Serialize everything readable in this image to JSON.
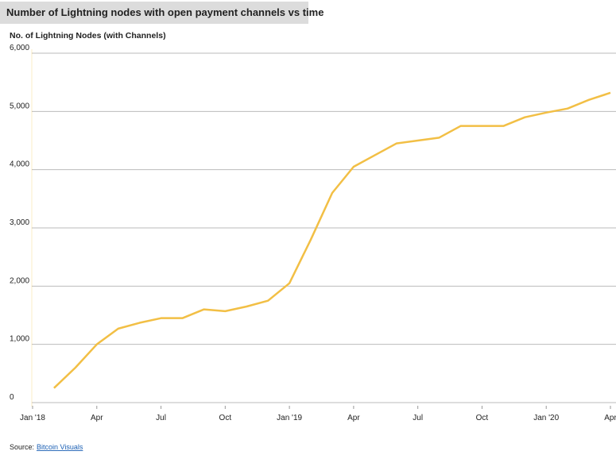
{
  "chart_data": {
    "type": "line",
    "title": "Number of Lightning nodes with open payment channels vs time",
    "y_label": "No. of Lightning Nodes (with Channels)",
    "source_label": "Source:",
    "source_link": "Bitcoin Visuals",
    "x": [
      "2018-02",
      "2018-03",
      "2018-04",
      "2018-05",
      "2018-06",
      "2018-07",
      "2018-08",
      "2018-09",
      "2018-10",
      "2018-11",
      "2018-12",
      "2019-01",
      "2019-02",
      "2019-03",
      "2019-04",
      "2019-05",
      "2019-06",
      "2019-07",
      "2019-08",
      "2019-09",
      "2019-10",
      "2019-11",
      "2019-12",
      "2020-01",
      "2020-02",
      "2020-03",
      "2020-04"
    ],
    "series": [
      {
        "color": "#f2bf45",
        "values": [
          250,
          600,
          1000,
          1270,
          1370,
          1450,
          1450,
          1600,
          1570,
          1650,
          1750,
          2050,
          2800,
          3600,
          4050,
          4250,
          4450,
          4500,
          4550,
          4750,
          4750,
          4750,
          4900,
          4980,
          5050,
          5200,
          5320
        ]
      }
    ],
    "xlim": [
      "2018-01",
      "2020-04"
    ],
    "xticks": [
      {
        "value": "2018-01",
        "label": "Jan '18"
      },
      {
        "value": "2018-04",
        "label": "Apr"
      },
      {
        "value": "2018-07",
        "label": "Jul"
      },
      {
        "value": "2018-10",
        "label": "Oct"
      },
      {
        "value": "2019-01",
        "label": "Jan '19"
      },
      {
        "value": "2019-04",
        "label": "Apr"
      },
      {
        "value": "2019-07",
        "label": "Jul"
      },
      {
        "value": "2019-10",
        "label": "Oct"
      },
      {
        "value": "2020-01",
        "label": "Jan '20"
      },
      {
        "value": "2020-04",
        "label": "Apr"
      }
    ],
    "ylim": [
      0,
      6000
    ],
    "yticks": [
      0,
      {
        "value": 1000,
        "label": "1,000"
      },
      {
        "value": 2000,
        "label": "2,000"
      },
      {
        "value": 3000,
        "label": "3,000"
      },
      {
        "value": 4000,
        "label": "4,000"
      },
      {
        "value": 5000,
        "label": "5,000"
      },
      {
        "value": 6000,
        "label": "6,000"
      }
    ],
    "grid": true
  }
}
